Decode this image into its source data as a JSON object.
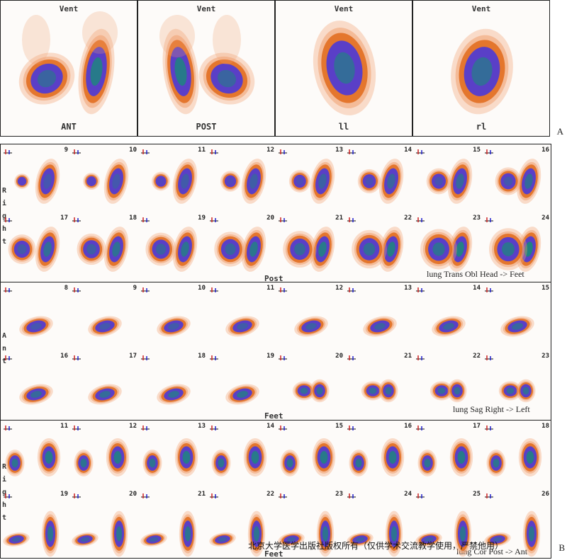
{
  "panel_a": {
    "figure_label": "A",
    "views": [
      {
        "top": "Vent",
        "bottom": "ANT"
      },
      {
        "top": "Vent",
        "bottom": "POST"
      },
      {
        "top": "Vent",
        "bottom": "ll"
      },
      {
        "top": "Vent",
        "bottom": "rl"
      }
    ]
  },
  "panel_b": {
    "figure_label": "B",
    "sections": [
      {
        "name": "transverse",
        "side_label": [
          "R",
          "i",
          "g",
          "h",
          "t"
        ],
        "row1": [
          "9",
          "10",
          "11",
          "12",
          "13",
          "14",
          "15",
          "16"
        ],
        "row2": [
          "17",
          "18",
          "19",
          "20",
          "21",
          "22",
          "23",
          "24"
        ],
        "center_label": "Post",
        "right_label": "lung Trans Obl Head -> Feet"
      },
      {
        "name": "sagittal",
        "side_label": [
          "A",
          "n",
          "t"
        ],
        "row1": [
          "8",
          "9",
          "10",
          "11",
          "12",
          "13",
          "14",
          "15"
        ],
        "row2": [
          "16",
          "17",
          "18",
          "19",
          "20",
          "21",
          "22",
          "23"
        ],
        "center_label": "Feet",
        "right_label": "lung Sag Right -> Left"
      },
      {
        "name": "coronal",
        "side_label": [
          "R",
          "i",
          "g",
          "h",
          "t"
        ],
        "row1": [
          "11",
          "12",
          "13",
          "14",
          "15",
          "16",
          "17",
          "18"
        ],
        "row2": [
          "19",
          "20",
          "21",
          "22",
          "23",
          "24",
          "25",
          "26"
        ],
        "center_label": "Feet",
        "right_label": "lung Cor Post -> Ant"
      }
    ]
  },
  "watermark": "北京大学医学出版社版权所有（仅供学术交流教学使用，严禁他用）",
  "colors": {
    "hot_outer": "#f0a070",
    "hot_mid": "#e06a1a",
    "hot_core": "#4a3ad8",
    "hot_peak": "#1a8a7a"
  }
}
